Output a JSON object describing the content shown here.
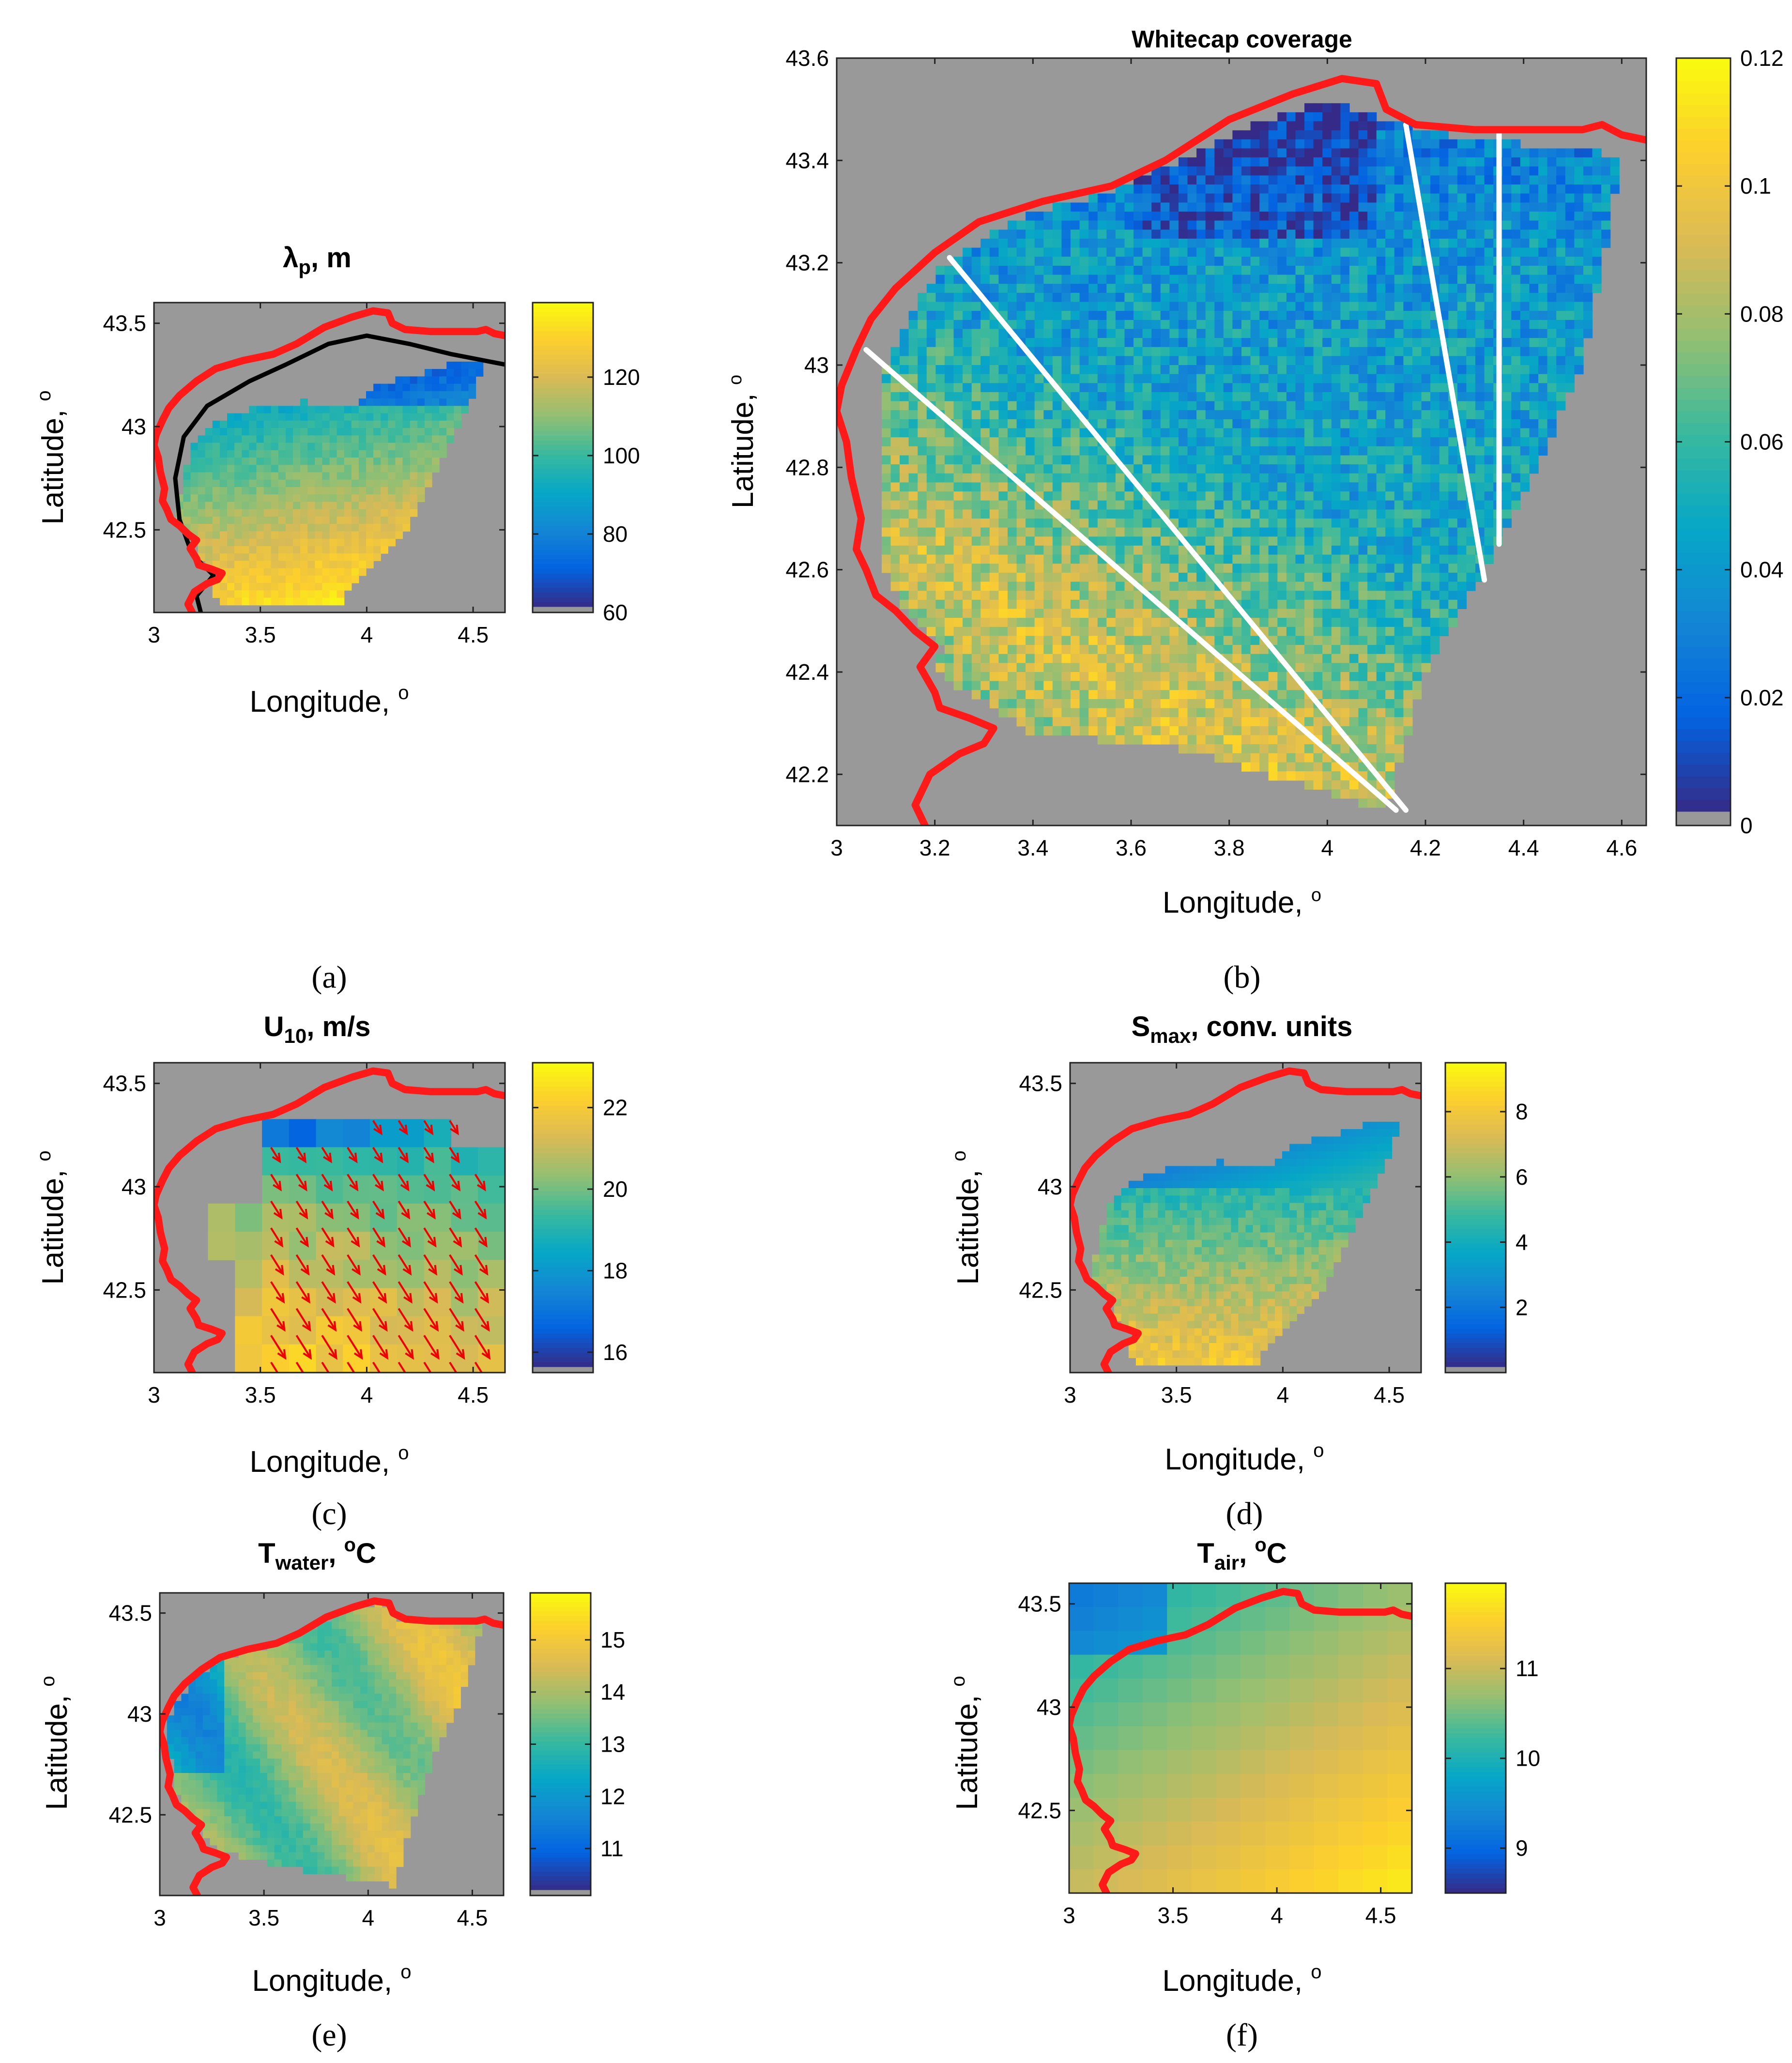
{
  "figure": {
    "panel_labels": [
      "(a)",
      "(b)",
      "(c)",
      "(d)",
      "(e)",
      "(f)"
    ]
  },
  "colors": {
    "land": "#999999",
    "coastline": "#ff1a1a",
    "white_lines": "#ffffff",
    "contour": "#000000",
    "wind_arrows": "#ee0000",
    "parula": [
      "#352a87",
      "#0363e1",
      "#1485d4",
      "#06a7c6",
      "#38b99e",
      "#92bf73",
      "#d9ba56",
      "#fcce2e",
      "#f9fb0e"
    ]
  },
  "chart_data": [
    {
      "id": "a",
      "type": "heatmap",
      "title_main": "λ",
      "title_sub": "p",
      "title_rest": ", m",
      "xlabel": "Longitude, ",
      "xlabel_sup": "o",
      "ylabel": "Latitude, ",
      "ylabel_sup": "o",
      "xlim": [
        3,
        4.65
      ],
      "ylim": [
        42.1,
        43.6
      ],
      "xticks": [
        3,
        3.5,
        4,
        4.5
      ],
      "xtick_labels": [
        "3",
        "3.5",
        "4",
        "4.5"
      ],
      "yticks": [
        42.5,
        43,
        43.5
      ],
      "ytick_labels": [
        "42.5",
        "43",
        "43.5"
      ],
      "colorbar": {
        "clim": [
          60,
          139
        ],
        "ticks": [
          60,
          80,
          100,
          120
        ],
        "tick_labels": [
          "60",
          "80",
          "100",
          "120"
        ],
        "gray_bottom": true
      },
      "field": "lambda",
      "mask": "a",
      "contour": true
    },
    {
      "id": "b",
      "type": "heatmap",
      "title": "Whitecap coverage",
      "xlabel": "Longitude, ",
      "xlabel_sup": "o",
      "ylabel": "Latitude, ",
      "ylabel_sup": "o",
      "xlim": [
        3,
        4.65
      ],
      "ylim": [
        42.1,
        43.6
      ],
      "xticks": [
        3,
        3.2,
        3.4,
        3.6,
        3.8,
        4,
        4.2,
        4.4,
        4.6
      ],
      "xtick_labels": [
        "3",
        "3.2",
        "3.4",
        "3.6",
        "3.8",
        "4",
        "4.2",
        "4.4",
        "4.6"
      ],
      "yticks": [
        42.2,
        42.4,
        42.6,
        42.8,
        43,
        43.2,
        43.4,
        43.6
      ],
      "ytick_labels": [
        "42.2",
        "42.4",
        "42.6",
        "42.8",
        "43",
        "43.2",
        "43.4",
        "43.6"
      ],
      "colorbar": {
        "clim": [
          0,
          0.12
        ],
        "ticks": [
          0,
          0.02,
          0.04,
          0.06,
          0.08,
          0.1,
          0.12
        ],
        "tick_labels": [
          "0",
          "0.02",
          "0.04",
          "0.06",
          "0.08",
          "0.1",
          "0.12"
        ],
        "gray_bottom": true
      },
      "field": "whitecap",
      "mask": "b",
      "transects": [
        {
          "from": [
            3.06,
            43.03
          ],
          "to": [
            4.14,
            42.13
          ]
        },
        {
          "from": [
            3.23,
            43.21
          ],
          "to": [
            4.16,
            42.13
          ]
        },
        {
          "from": [
            4.16,
            43.47
          ],
          "to": [
            4.32,
            42.58
          ]
        },
        {
          "from": [
            4.35,
            43.46
          ],
          "to": [
            4.35,
            42.65
          ]
        }
      ]
    },
    {
      "id": "c",
      "type": "heatmap",
      "title_main": "U",
      "title_sub": "10",
      "title_rest": ", m/s",
      "xlabel": "Longitude, ",
      "xlabel_sup": "o",
      "ylabel": "Latitude, ",
      "ylabel_sup": "o",
      "xlim": [
        3,
        4.65
      ],
      "ylim": [
        42.1,
        43.6
      ],
      "xticks": [
        3,
        3.5,
        4,
        4.5
      ],
      "xtick_labels": [
        "3",
        "3.5",
        "4",
        "4.5"
      ],
      "yticks": [
        42.5,
        43,
        43.5
      ],
      "ytick_labels": [
        "42.5",
        "43",
        "43.5"
      ],
      "colorbar": {
        "clim": [
          15.5,
          23.1
        ],
        "ticks": [
          16,
          18,
          20,
          22
        ],
        "tick_labels": [
          "16",
          "18",
          "20",
          "22"
        ],
        "gray_bottom": true
      },
      "field": "wind",
      "mask": "c",
      "arrows": true
    },
    {
      "id": "d",
      "type": "heatmap",
      "title_main": "S",
      "title_sub": "max",
      "title_rest": ", conv. units",
      "xlabel": "Longitude, ",
      "xlabel_sup": "o",
      "ylabel": "Latitude, ",
      "ylabel_sup": "o",
      "xlim": [
        3,
        4.65
      ],
      "ylim": [
        42.1,
        43.6
      ],
      "xticks": [
        3,
        3.5,
        4,
        4.5
      ],
      "xtick_labels": [
        "3",
        "3.5",
        "4",
        "4.5"
      ],
      "yticks": [
        42.5,
        43,
        43.5
      ],
      "ytick_labels": [
        "42.5",
        "43",
        "43.5"
      ],
      "colorbar": {
        "clim": [
          0,
          9.5
        ],
        "ticks": [
          2,
          4,
          6,
          8
        ],
        "tick_labels": [
          "2",
          "4",
          "6",
          "8"
        ],
        "gray_bottom": true
      },
      "field": "smax",
      "mask": "a"
    },
    {
      "id": "e",
      "type": "heatmap",
      "title_main": "T",
      "title_sub": "water",
      "title_rest": ", ",
      "title_sup": "o",
      "title_end": "C",
      "xlabel": "Longitude, ",
      "xlabel_sup": "o",
      "ylabel": "Latitude, ",
      "ylabel_sup": "o",
      "xlim": [
        3,
        4.65
      ],
      "ylim": [
        42.1,
        43.6
      ],
      "xticks": [
        3,
        3.5,
        4,
        4.5
      ],
      "xtick_labels": [
        "3",
        "3.5",
        "4",
        "4.5"
      ],
      "yticks": [
        42.5,
        43,
        43.5
      ],
      "ytick_labels": [
        "42.5",
        "43",
        "43.5"
      ],
      "colorbar": {
        "clim": [
          10.1,
          15.9
        ],
        "ticks": [
          11,
          12,
          13,
          14,
          15
        ],
        "tick_labels": [
          "11",
          "12",
          "13",
          "14",
          "15"
        ],
        "gray_bottom": true
      },
      "field": "twater",
      "mask": "e"
    },
    {
      "id": "f",
      "type": "heatmap",
      "title_main": "T",
      "title_sub": "air",
      "title_rest": ", ",
      "title_sup": "o",
      "title_end": "C",
      "xlabel": "Longitude, ",
      "xlabel_sup": "o",
      "ylabel": "Latitude, ",
      "ylabel_sup": "o",
      "xlim": [
        3,
        4.65
      ],
      "ylim": [
        42.1,
        43.6
      ],
      "xticks": [
        3,
        3.5,
        4,
        4.5
      ],
      "xtick_labels": [
        "3",
        "3.5",
        "4",
        "4.5"
      ],
      "yticks": [
        42.5,
        43,
        43.5
      ],
      "ytick_labels": [
        "42.5",
        "43",
        "43.5"
      ],
      "colorbar": {
        "clim": [
          8.5,
          11.95
        ],
        "ticks": [
          9,
          10,
          11
        ],
        "tick_labels": [
          "9",
          "10",
          "11"
        ],
        "gray_bottom": false
      },
      "field": "tair",
      "mask": "full"
    }
  ],
  "coastline": [
    [
      3.18,
      42.1
    ],
    [
      3.16,
      42.14
    ],
    [
      3.19,
      42.2
    ],
    [
      3.25,
      42.24
    ],
    [
      3.3,
      42.26
    ],
    [
      3.32,
      42.29
    ],
    [
      3.27,
      42.31
    ],
    [
      3.21,
      42.33
    ],
    [
      3.2,
      42.36
    ],
    [
      3.17,
      42.41
    ],
    [
      3.2,
      42.45
    ],
    [
      3.16,
      42.48
    ],
    [
      3.12,
      42.52
    ],
    [
      3.08,
      42.55
    ],
    [
      3.06,
      42.6
    ],
    [
      3.04,
      42.64
    ],
    [
      3.05,
      42.7
    ],
    [
      3.03,
      42.78
    ],
    [
      3.02,
      42.85
    ],
    [
      3.0,
      42.91
    ],
    [
      3.01,
      42.96
    ],
    [
      3.04,
      43.03
    ],
    [
      3.07,
      43.09
    ],
    [
      3.12,
      43.15
    ],
    [
      3.2,
      43.22
    ],
    [
      3.29,
      43.28
    ],
    [
      3.42,
      43.32
    ],
    [
      3.56,
      43.35
    ],
    [
      3.67,
      43.4
    ],
    [
      3.8,
      43.48
    ],
    [
      3.93,
      43.53
    ],
    [
      4.03,
      43.56
    ],
    [
      4.1,
      43.55
    ],
    [
      4.12,
      43.5
    ],
    [
      4.18,
      43.47
    ],
    [
      4.3,
      43.46
    ],
    [
      4.42,
      43.46
    ],
    [
      4.52,
      43.46
    ],
    [
      4.56,
      43.47
    ],
    [
      4.6,
      43.45
    ],
    [
      4.65,
      43.44
    ]
  ]
}
